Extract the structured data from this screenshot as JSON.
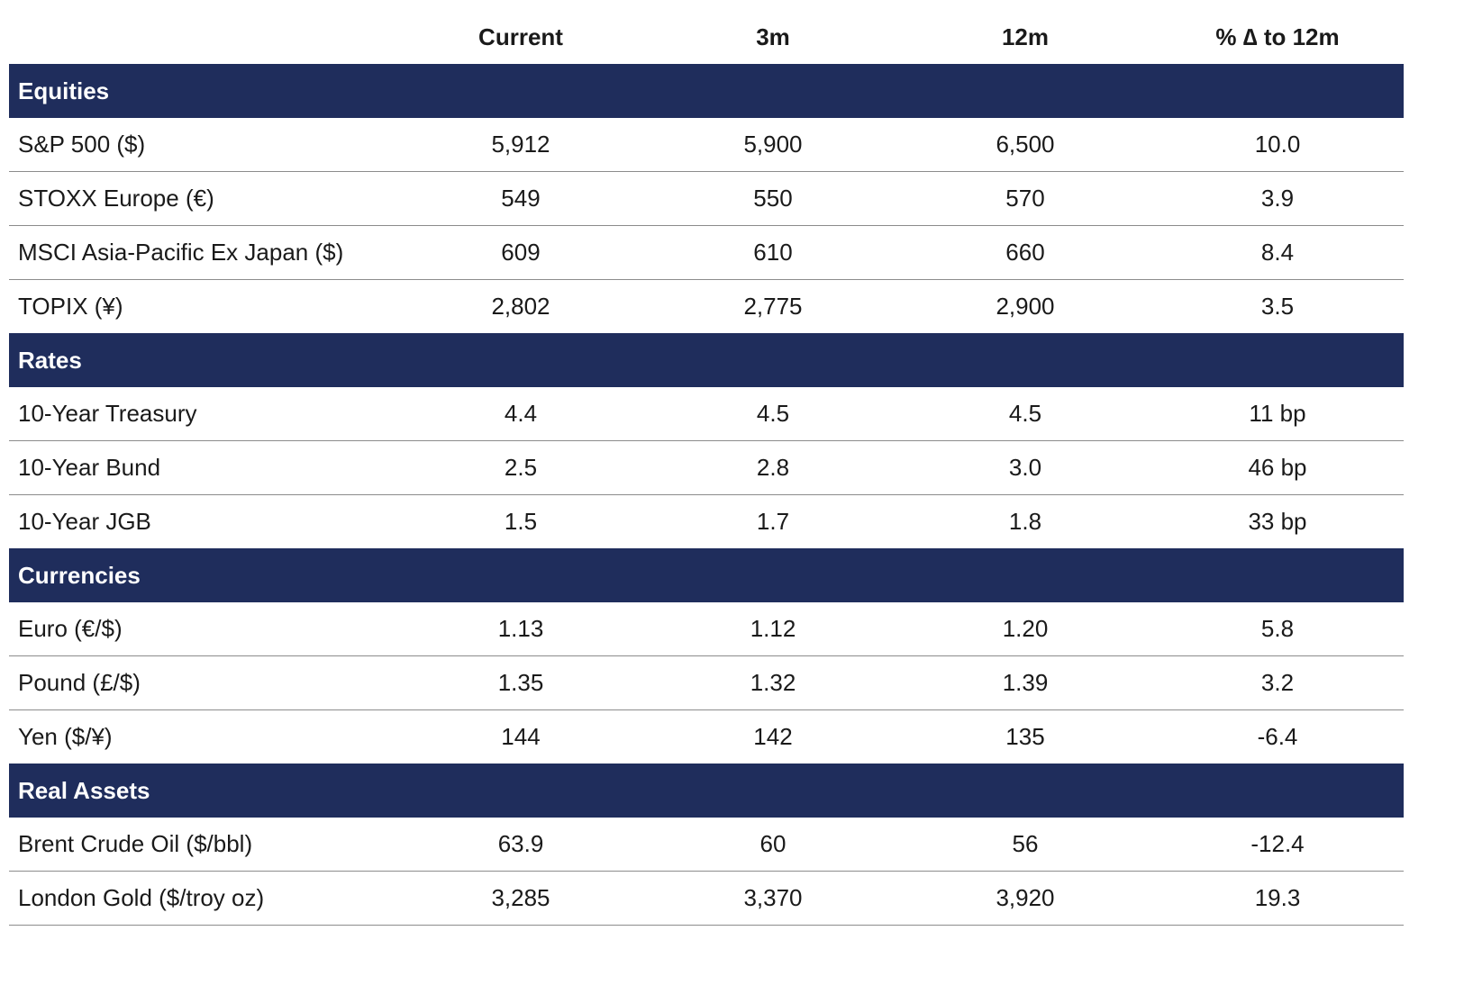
{
  "headers": {
    "current": "Current",
    "three_month": "3m",
    "twelve_month": "12m",
    "pct_change": "% ∆ to 12m"
  },
  "sections": [
    {
      "title": "Equities",
      "rows": [
        {
          "label": "S&P 500 ($)",
          "current": "5,912",
          "m3": "5,900",
          "m12": "6,500",
          "pct": "10.0"
        },
        {
          "label": "STOXX Europe (€)",
          "current": "549",
          "m3": "550",
          "m12": "570",
          "pct": "3.9"
        },
        {
          "label": "MSCI Asia-Pacific Ex Japan ($)",
          "current": "609",
          "m3": "610",
          "m12": "660",
          "pct": "8.4"
        },
        {
          "label": "TOPIX (¥)",
          "current": "2,802",
          "m3": "2,775",
          "m12": "2,900",
          "pct": "3.5"
        }
      ]
    },
    {
      "title": "Rates",
      "rows": [
        {
          "label": "10-Year Treasury",
          "current": "4.4",
          "m3": "4.5",
          "m12": "4.5",
          "pct": "11 bp"
        },
        {
          "label": "10-Year Bund",
          "current": "2.5",
          "m3": "2.8",
          "m12": "3.0",
          "pct": "46 bp"
        },
        {
          "label": "10-Year JGB",
          "current": "1.5",
          "m3": "1.7",
          "m12": "1.8",
          "pct": "33 bp"
        }
      ]
    },
    {
      "title": "Currencies",
      "rows": [
        {
          "label": "Euro (€/$)",
          "current": "1.13",
          "m3": "1.12",
          "m12": "1.20",
          "pct": "5.8"
        },
        {
          "label": "Pound (£/$)",
          "current": "1.35",
          "m3": "1.32",
          "m12": "1.39",
          "pct": "3.2"
        },
        {
          "label": "Yen ($/¥)",
          "current": "144",
          "m3": "142",
          "m12": "135",
          "pct": "-6.4"
        }
      ]
    },
    {
      "title": "Real Assets",
      "rows": [
        {
          "label": "Brent Crude Oil ($/bbl)",
          "current": "63.9",
          "m3": "60",
          "m12": "56",
          "pct": "-12.4"
        },
        {
          "label": "London Gold ($/troy oz)",
          "current": "3,285",
          "m3": "3,370",
          "m12": "3,920",
          "pct": "19.3"
        }
      ]
    }
  ],
  "colors": {
    "section_band": "#1f2d5c",
    "section_text": "#ffffff",
    "row_divider": "#8c8c8c"
  }
}
